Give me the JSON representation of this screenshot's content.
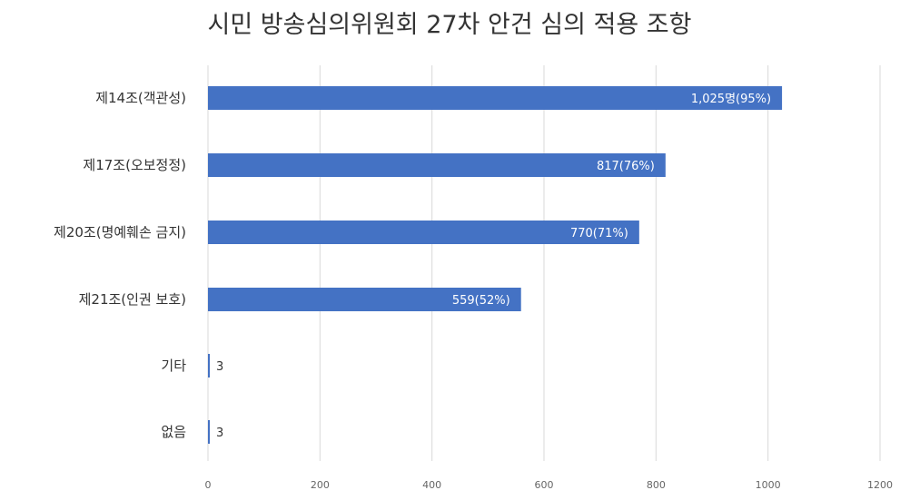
{
  "chart_data": {
    "type": "bar",
    "orientation": "horizontal",
    "title": "시민 방송심의위원회 27차 안건 심의 적용 조항",
    "categories": [
      "제14조(객관성)",
      "제17조(오보정정)",
      "제20조(명예훼손 금지)",
      "제21조(인권 보호)",
      "기타",
      "없음"
    ],
    "values": [
      1025,
      817,
      770,
      559,
      3,
      3
    ],
    "data_labels": [
      "1,025명(95%)",
      "817(76%)",
      "770(71%)",
      "559(52%)",
      "3",
      "3"
    ],
    "xlim": [
      0,
      1200
    ],
    "x_ticks": [
      0,
      200,
      400,
      600,
      800,
      1000,
      1200
    ],
    "grid": true,
    "bar_color": "#4472C4",
    "grid_color": "#D9D9D9"
  }
}
